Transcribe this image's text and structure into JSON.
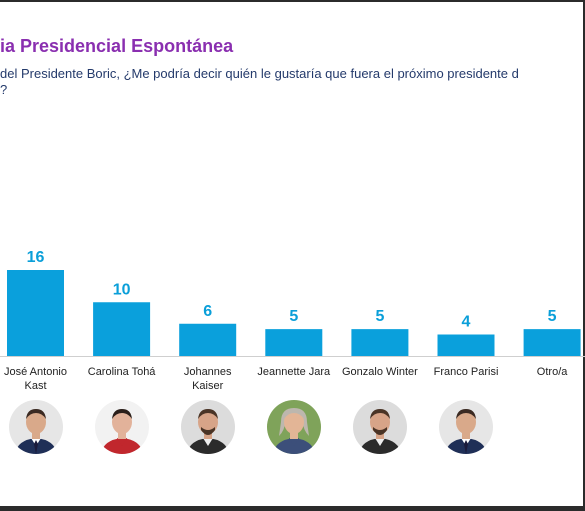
{
  "header": {
    "title": "ia Presidencial Espontánea",
    "subtitle": "del Presidente Boric, ¿Me podría decir quién le gustaría que fuera el próximo presidente d",
    "subtitle_cont": "?"
  },
  "colors": {
    "bar": "#0aa0dc",
    "label": "#0a9fd9",
    "title": "#8a2fb0",
    "text": "#243a6b"
  },
  "chart_data": {
    "type": "bar",
    "categories": [
      "José Antonio Kast",
      "Carolina Tohá",
      "Johannes Kaiser",
      "Jeannette Jara",
      "Gonzalo Winter",
      "Franco Parisi",
      "Otro/a"
    ],
    "category_lines": [
      [
        "José Antonio",
        "Kast"
      ],
      [
        "Carolina Tohá"
      ],
      [
        "Johannes",
        "Kaiser"
      ],
      [
        "Jeannette Jara"
      ],
      [
        "Gonzalo Winter"
      ],
      [
        "Franco Parisi"
      ],
      [
        "Otro/a"
      ]
    ],
    "values": [
      16,
      10,
      6,
      5,
      5,
      4,
      5
    ],
    "data_labels": true,
    "grid": false,
    "ylim": [
      0,
      16
    ]
  },
  "portraits": [
    {
      "name": "José Antonio Kast",
      "icon": "portrait-man-suit"
    },
    {
      "name": "Carolina Tohá",
      "icon": "portrait-woman-short-hair"
    },
    {
      "name": "Johannes Kaiser",
      "icon": "portrait-man-beard"
    },
    {
      "name": "Jeannette Jara",
      "icon": "portrait-woman-gray-hair"
    },
    {
      "name": "Gonzalo Winter",
      "icon": "portrait-man-beard"
    },
    {
      "name": "Franco Parisi",
      "icon": "portrait-man-suit"
    }
  ]
}
